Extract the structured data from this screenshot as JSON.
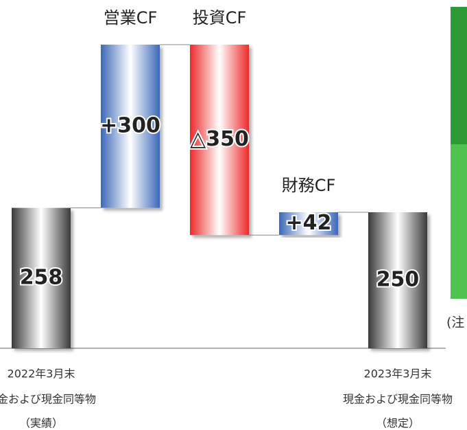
{
  "chart_data": {
    "type": "waterfall",
    "categories": [
      "2022年3月末",
      "営業CF",
      "投資CF",
      "財務CF",
      "2023年3月末"
    ],
    "sublabels": [
      [
        "現金および現金同等物",
        "（実績）"
      ],
      null,
      null,
      null,
      [
        "現金および現金同等物",
        "（想定）"
      ]
    ],
    "measure": [
      "absolute",
      "relative",
      "relative",
      "relative",
      "absolute"
    ],
    "values": [
      258,
      300,
      -350,
      42,
      250
    ],
    "value_labels": [
      "258",
      "+300",
      "△350",
      "+42",
      "250"
    ],
    "colors": {
      "absolute": "#3a3a3a",
      "increase": "#3b68b8",
      "decrease": "#ec2a2a"
    },
    "ylim": [
      0,
      640
    ],
    "annotation": "(注"
  }
}
